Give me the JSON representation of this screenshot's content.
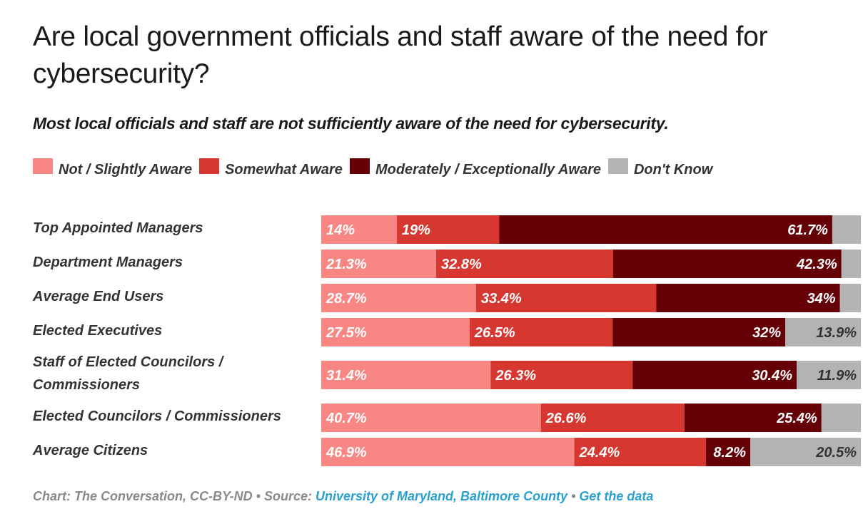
{
  "chart_data": {
    "type": "bar",
    "orientation": "horizontal",
    "stacked": true,
    "title": "Are local government officials and staff aware of the need for cybersecurity?",
    "subtitle": "Most local officials and staff are not sufficiently aware of the need for cybersecurity.",
    "xlabel": "",
    "ylabel": "",
    "xlim": [
      0,
      100
    ],
    "grid": false,
    "legend_position": "top-left",
    "categories": [
      "Top Appointed Managers",
      "Department Managers",
      "Average End Users",
      "Elected Executives",
      "Staff of Elected Councilors / Commissioners",
      "Elected Councilors / Commissioners",
      "Average Citizens"
    ],
    "category_lines": [
      [
        "Top Appointed Managers"
      ],
      [
        "Department Managers"
      ],
      [
        "Average End Users"
      ],
      [
        "Elected Executives"
      ],
      [
        "Staff of Elected Councilors /",
        "Commissioners"
      ],
      [
        "Elected Councilors / Commissioners"
      ],
      [
        "Average Citizens"
      ]
    ],
    "series": [
      {
        "name": "Not / Slightly Aware",
        "color": "#f88683",
        "label_color": "#ffffff",
        "values": [
          14,
          21.3,
          28.7,
          27.5,
          31.4,
          40.7,
          46.9
        ],
        "labels": [
          "14%",
          "21.3%",
          "28.7%",
          "27.5%",
          "31.4%",
          "40.7%",
          "46.9%"
        ],
        "label_align": "left"
      },
      {
        "name": "Somewhat Aware",
        "color": "#d63831",
        "label_color": "#ffffff",
        "values": [
          19,
          32.8,
          33.4,
          26.5,
          26.3,
          26.6,
          24.4
        ],
        "labels": [
          "19%",
          "32.8%",
          "33.4%",
          "26.5%",
          "26.3%",
          "26.6%",
          "24.4%"
        ],
        "label_align": "left"
      },
      {
        "name": "Moderately / Exceptionally Aware",
        "color": "#650007",
        "label_color": "#ffffff",
        "values": [
          61.7,
          42.3,
          34,
          32,
          30.4,
          25.4,
          8.2
        ],
        "labels": [
          "61.7%",
          "42.3%",
          "34%",
          "32%",
          "30.4%",
          "25.4%",
          "8.2%"
        ],
        "label_align": "right"
      },
      {
        "name": "Don't Know",
        "color": "#b3b3b3",
        "label_color": "#333333",
        "values": [
          5.3,
          3.6,
          3.9,
          13.9,
          11.9,
          7.3,
          20.5
        ],
        "labels": [
          "",
          "",
          "",
          "13.9%",
          "11.9%",
          "",
          "20.5%"
        ],
        "label_align": "right"
      }
    ]
  },
  "footer": {
    "prefix": "Chart: The Conversation, CC-BY-ND • Source: ",
    "source_link": "University of Maryland, Baltimore County",
    "separator": " • ",
    "data_link": "Get the data"
  }
}
